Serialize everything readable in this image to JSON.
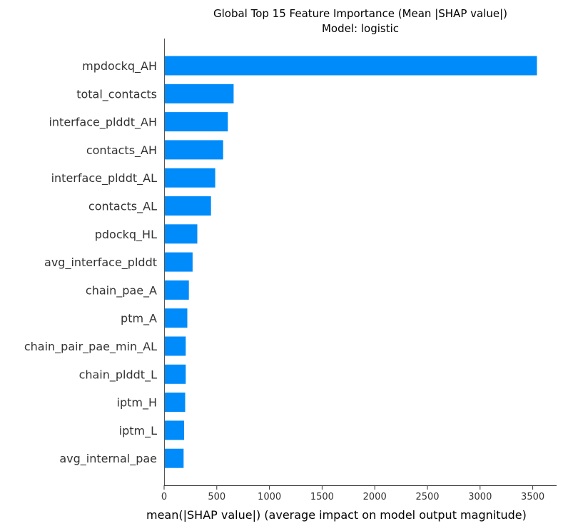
{
  "chart_data": {
    "type": "bar",
    "orientation": "horizontal",
    "title": "Global Top 15 Feature Importance (Mean |SHAP value|)",
    "subtitle": "Model: logistic",
    "xlabel": "mean(|SHAP value|) (average impact on model output magnitude)",
    "ylabel": "",
    "xlim": [
      0,
      3700
    ],
    "xticks": [
      0,
      500,
      1000,
      1500,
      2000,
      2500,
      3000,
      3500
    ],
    "grid": false,
    "bar_color": "#008bfb",
    "categories": [
      "mpdockq_AH",
      "total_contacts",
      "interface_plddt_AH",
      "contacts_AH",
      "interface_plddt_AL",
      "contacts_AL",
      "pdockq_HL",
      "avg_interface_plddt",
      "chain_pae_A",
      "ptm_A",
      "chain_pair_pae_min_AL",
      "chain_plddt_L",
      "iptm_H",
      "iptm_L",
      "avg_internal_pae"
    ],
    "values": [
      3540,
      660,
      605,
      560,
      485,
      445,
      315,
      270,
      235,
      220,
      205,
      205,
      200,
      190,
      185
    ]
  }
}
